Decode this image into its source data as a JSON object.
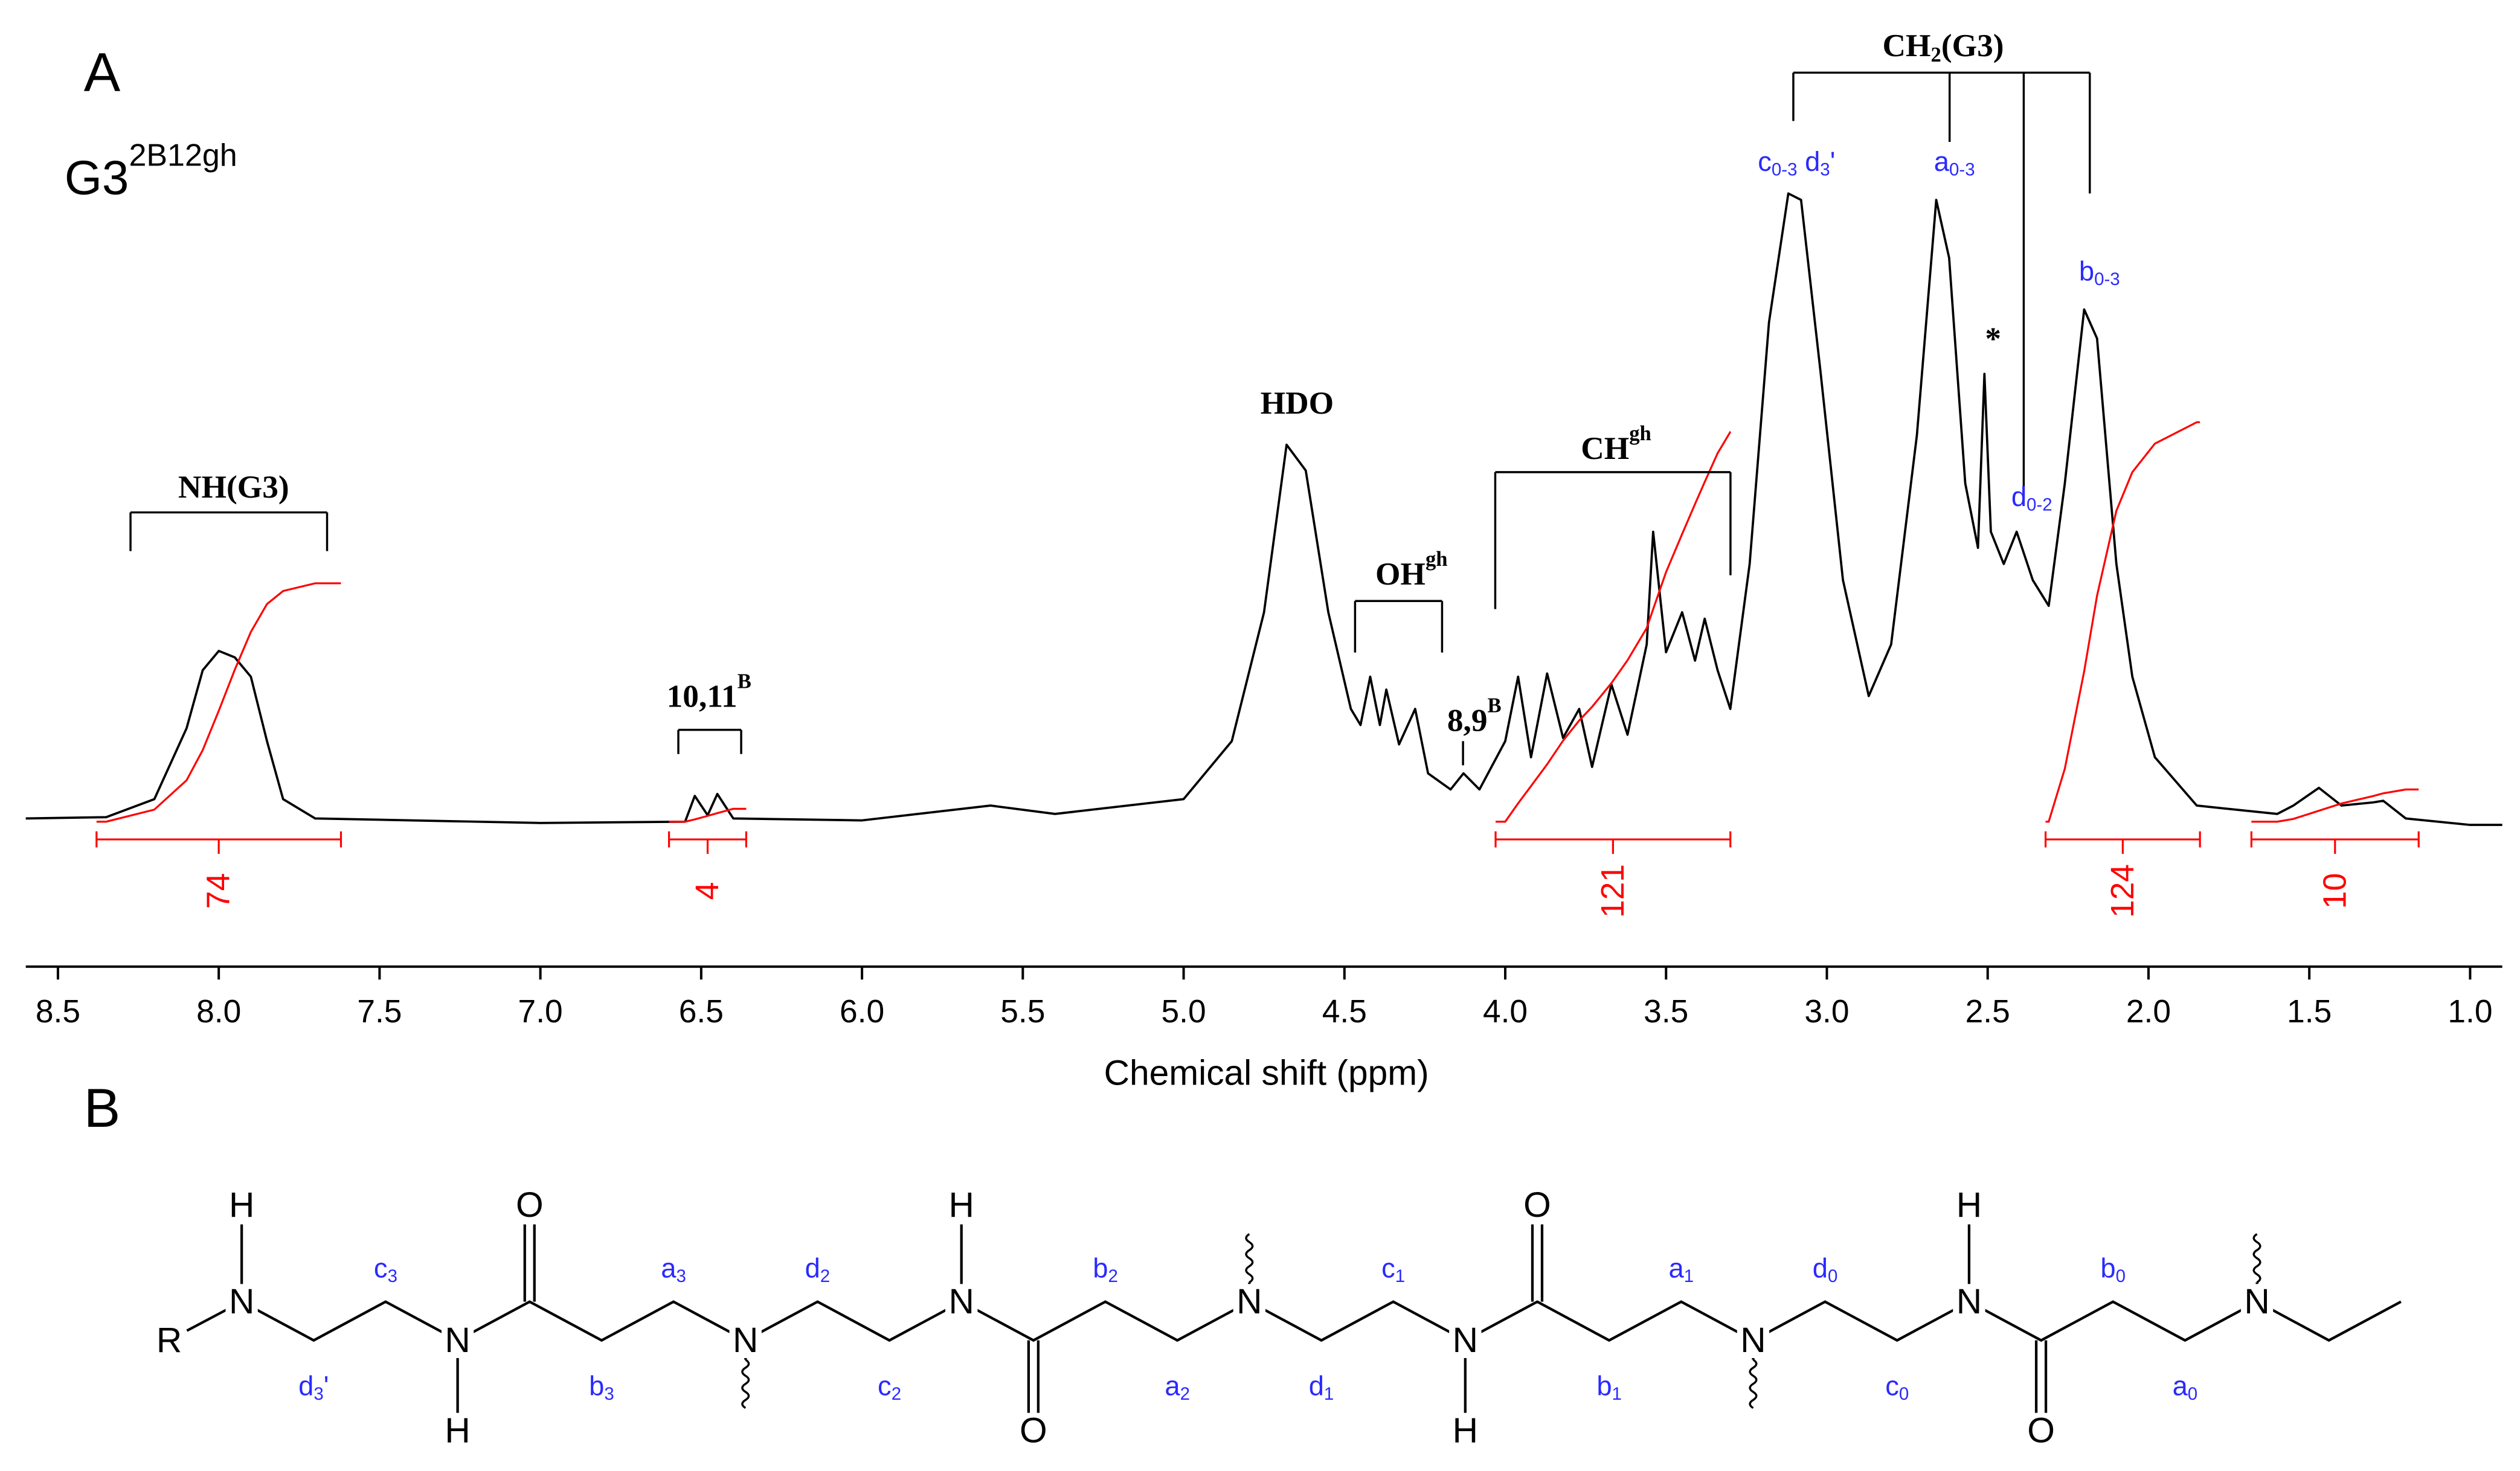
{
  "panel_labels": [
    "A",
    "B"
  ],
  "chart_data": {
    "type": "line",
    "title": [
      {
        "text": "G3"
      },
      {
        "text": "2B12gh",
        "script": "sup"
      }
    ],
    "x_label": "Chemical shift (ppm)",
    "xlim": [
      8.6,
      0.9
    ],
    "ylim": [
      0,
      100
    ],
    "xticks": [
      8.5,
      {
        "value": 8,
        "label": "8.0"
      },
      7.5,
      {
        "value": 7,
        "label": "7.0"
      },
      6.5,
      {
        "value": 6,
        "label": "6.0"
      },
      5.5,
      {
        "value": 5,
        "label": "5.0"
      },
      4.5,
      {
        "value": 4,
        "label": "4.0"
      },
      3.5,
      {
        "value": 3,
        "label": "3.0"
      },
      2.5,
      {
        "value": 2,
        "label": "2.0"
      },
      1.5,
      {
        "value": 1,
        "label": "1.0"
      }
    ],
    "x": [
      8.6,
      8.35,
      8.2,
      8.1,
      8.05,
      8,
      7.95,
      7.9,
      7.85,
      7.8,
      7.7,
      7,
      6.55,
      6.52,
      6.48,
      6.45,
      6.4,
      6,
      5.6,
      5.4,
      5,
      4.85,
      4.75,
      4.68,
      4.62,
      4.55,
      4.48,
      4.45,
      4.42,
      4.39,
      4.37,
      4.33,
      4.28,
      4.24,
      4.17,
      4.13,
      4.08,
      4,
      3.96,
      3.92,
      3.87,
      3.82,
      3.77,
      3.73,
      3.67,
      3.62,
      3.56,
      3.54,
      3.5,
      3.45,
      3.41,
      3.38,
      3.34,
      3.3,
      3.24,
      3.18,
      3.12,
      3.08,
      3.02,
      2.95,
      2.87,
      2.8,
      2.72,
      2.66,
      2.62,
      2.57,
      2.53,
      2.51,
      2.49,
      2.45,
      2.41,
      2.36,
      2.31,
      2.26,
      2.2,
      2.16,
      2.1,
      2.05,
      1.98,
      1.85,
      1.6,
      1.55,
      1.47,
      1.4,
      1.3,
      1.27,
      1.2,
      1,
      0.9
    ],
    "series": [
      {
        "color": "#000000",
        "values": [
          1,
          1.2,
          4,
          15,
          24,
          27,
          26,
          23,
          13,
          4,
          1,
          0.3,
          0.5,
          4.5,
          1.5,
          4.8,
          1,
          0.7,
          3,
          1.7,
          4,
          13,
          33,
          59,
          55,
          33,
          18,
          15.5,
          23,
          15.5,
          21,
          12.5,
          18,
          8,
          5.5,
          8,
          5.5,
          13,
          23,
          10.5,
          23.5,
          13.5,
          18,
          9,
          21.8,
          14,
          28,
          45.5,
          26.8,
          33,
          25.5,
          32,
          24,
          18,
          40.5,
          78,
          98,
          97,
          70.5,
          38,
          20,
          28,
          60.5,
          97,
          88,
          53,
          43,
          70,
          45.5,
          40.5,
          45.5,
          38,
          34,
          53,
          80,
          75.5,
          40.5,
          23,
          10.5,
          3,
          1.7,
          3,
          5.75,
          3,
          3.5,
          3.75,
          1,
          0,
          0
        ]
      }
    ],
    "integral_color": "#ff0000",
    "integrals": [
      {
        "value": 74,
        "range": [
          8.38,
          7.62
        ]
      },
      {
        "value": 4,
        "range": [
          6.6,
          6.36
        ]
      },
      {
        "value": 121,
        "range": [
          4.03,
          3.3
        ]
      },
      {
        "value": 124,
        "range": [
          2.32,
          1.84
        ]
      },
      {
        "value": 10,
        "range": [
          1.68,
          1.16
        ]
      }
    ],
    "annotations": [
      [
        {
          "text": "NH(G3)"
        }
      ],
      [
        {
          "text": "10,11"
        },
        {
          "text": "B",
          "script": "sup"
        }
      ],
      [
        {
          "text": "HDO"
        }
      ],
      [
        {
          "text": "OH"
        },
        {
          "text": "gh",
          "script": "sup"
        }
      ],
      [
        {
          "text": "8,9"
        },
        {
          "text": "B",
          "script": "sup"
        }
      ],
      [
        {
          "text": "CH"
        },
        {
          "text": "gh",
          "script": "sup"
        }
      ],
      [
        {
          "text": "CH"
        },
        {
          "text": "2",
          "script": "sub"
        },
        {
          "text": "(G3)"
        }
      ],
      [
        {
          "text": "*"
        }
      ]
    ],
    "peak_labels": [
      [
        {
          "text": "c"
        },
        {
          "text": "0-3",
          "script": "sub"
        },
        {
          "text": " d"
        },
        {
          "text": "3",
          "script": "sub"
        },
        {
          "text": "'"
        }
      ],
      [
        {
          "text": "a"
        },
        {
          "text": "0-3",
          "script": "sub"
        }
      ],
      [
        {
          "text": "b"
        },
        {
          "text": "0-3",
          "script": "sub"
        }
      ],
      [
        {
          "text": "d"
        },
        {
          "text": "0-2",
          "script": "sub"
        }
      ]
    ]
  },
  "structure": {
    "atoms": [
      "R",
      "N",
      "H",
      "N",
      "H",
      "O",
      "N",
      "N",
      "H",
      "O",
      "N",
      "N",
      "H",
      "O",
      "N",
      "N",
      "H",
      "O",
      "N"
    ],
    "bond_labels": [
      [
        {
          "text": "c"
        },
        {
          "text": "3",
          "script": "sub"
        }
      ],
      [
        {
          "text": "d"
        },
        {
          "text": "3",
          "script": "sub"
        },
        {
          "text": "'"
        }
      ],
      [
        {
          "text": "a"
        },
        {
          "text": "3",
          "script": "sub"
        }
      ],
      [
        {
          "text": "b"
        },
        {
          "text": "3",
          "script": "sub"
        }
      ],
      [
        {
          "text": "d"
        },
        {
          "text": "2",
          "script": "sub"
        }
      ],
      [
        {
          "text": "c"
        },
        {
          "text": "2",
          "script": "sub"
        }
      ],
      [
        {
          "text": "b"
        },
        {
          "text": "2",
          "script": "sub"
        }
      ],
      [
        {
          "text": "a"
        },
        {
          "text": "2",
          "script": "sub"
        }
      ],
      [
        {
          "text": "c"
        },
        {
          "text": "1",
          "script": "sub"
        }
      ],
      [
        {
          "text": "d"
        },
        {
          "text": "1",
          "script": "sub"
        }
      ],
      [
        {
          "text": "a"
        },
        {
          "text": "1",
          "script": "sub"
        }
      ],
      [
        {
          "text": "b"
        },
        {
          "text": "1",
          "script": "sub"
        }
      ],
      [
        {
          "text": "d"
        },
        {
          "text": "0",
          "script": "sub"
        }
      ],
      [
        {
          "text": "c"
        },
        {
          "text": "0",
          "script": "sub"
        }
      ],
      [
        {
          "text": "b"
        },
        {
          "text": "0",
          "script": "sub"
        }
      ],
      [
        {
          "text": "a"
        },
        {
          "text": "0",
          "script": "sub"
        }
      ]
    ]
  }
}
